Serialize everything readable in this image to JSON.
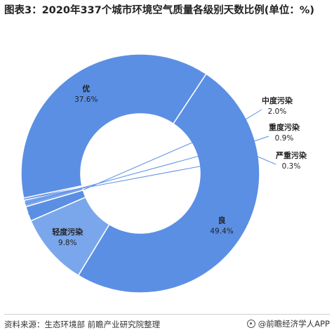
{
  "title": "图表3：2020年337个城市环境空气质量各级别天数比例(单位：%)",
  "colors": {
    "slice": "#5b8fe3",
    "slice_light": "#7aa6ec",
    "leader": "#5b8fe3",
    "label": "#222222"
  },
  "chart_data": {
    "type": "pie",
    "donut": true,
    "categories": [
      "良",
      "轻度污染",
      "中度污染",
      "重度污染",
      "严重污染",
      "优"
    ],
    "values": [
      49.4,
      9.8,
      2.0,
      0.9,
      0.3,
      37.6
    ],
    "value_labels": [
      "49.4%",
      "9.8%",
      "2.0%",
      "0.9%",
      "0.3%",
      "37.6%"
    ]
  },
  "footer": {
    "source": "资料来源：生态环境部 前瞻产业研究院整理",
    "brand": "@前瞻经济学人APP"
  }
}
